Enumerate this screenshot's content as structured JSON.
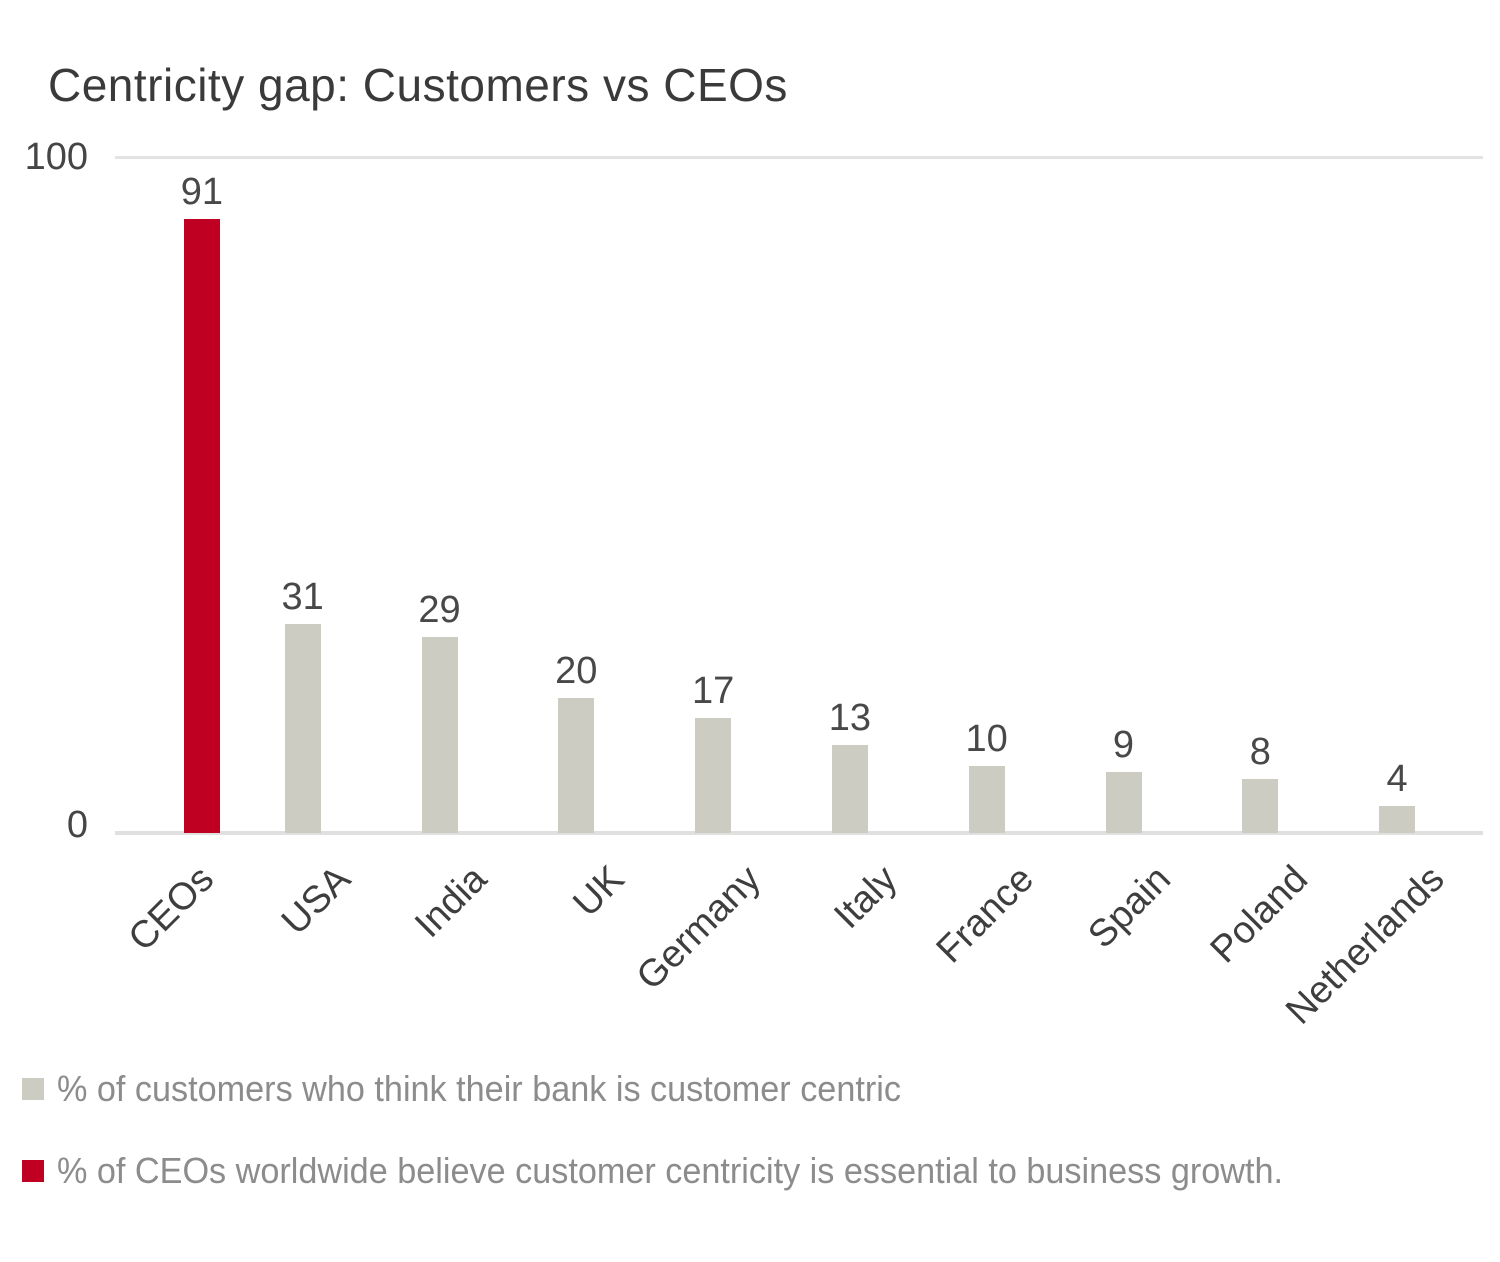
{
  "chart_data": {
    "type": "bar",
    "title": "Centricity gap: Customers vs CEOs",
    "categories": [
      "CEOs",
      "USA",
      "India",
      "UK",
      "Germany",
      "Italy",
      "France",
      "Spain",
      "Poland",
      "Netherlands"
    ],
    "series": [
      {
        "name": "% of customers who think their bank is customer centric",
        "color": "#cdccc3",
        "values": [
          null,
          31,
          29,
          20,
          17,
          13,
          10,
          9,
          8,
          4
        ]
      },
      {
        "name": "% of CEOs worldwide believe customer centricity is essential to business growth.",
        "color": "#c00023",
        "values": [
          91,
          null,
          null,
          null,
          null,
          null,
          null,
          null,
          null,
          null
        ]
      }
    ],
    "ylim": [
      0,
      100
    ],
    "yticks": [
      "100",
      "0"
    ],
    "grid": "top gridline and baseline only",
    "legend_position": "bottom",
    "tick_label_rotation_deg": 45,
    "colors": {
      "accent_red": "#c00023",
      "bar_gray": "#cdccc3",
      "title_text": "#3a3a3a",
      "axis_text": "#454545",
      "legend_text": "#8c8c8c",
      "gridline": "#e3e3e3"
    }
  }
}
